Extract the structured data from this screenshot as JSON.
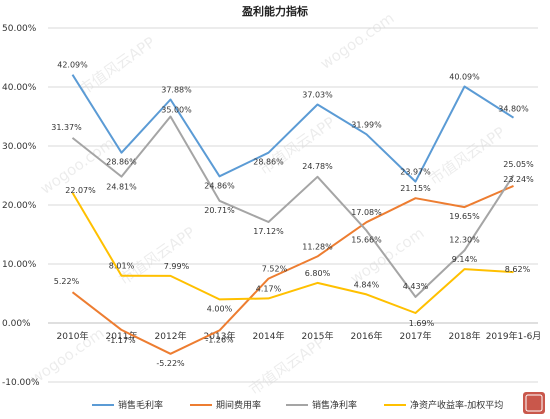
{
  "chart_data": {
    "type": "line",
    "title": "盈利能力指标",
    "categories": [
      "2010年",
      "2011年",
      "2012年",
      "2013年",
      "2014年",
      "2015年",
      "2016年",
      "2017年",
      "2018年",
      "2019年1-6月"
    ],
    "ylim": [
      -10,
      50
    ],
    "yticks": [
      "-10.00%",
      "0.00%",
      "10.00%",
      "20.00%",
      "30.00%",
      "40.00%",
      "50.00%"
    ],
    "ytick_values": [
      -10,
      0,
      10,
      20,
      30,
      40,
      50
    ],
    "grid": true,
    "legend_position": "bottom",
    "series": [
      {
        "name": "销售毛利率",
        "color": "#5b9bd5",
        "values": [
          42.09,
          28.86,
          37.88,
          24.86,
          28.86,
          37.03,
          31.99,
          23.97,
          40.09,
          34.8
        ],
        "labels": [
          "42.09%",
          "28.86%",
          "37.88%",
          "24.86%",
          "28.86%",
          "37.03%",
          "31.99%",
          "23.97%",
          "40.09%",
          "34.80%"
        ]
      },
      {
        "name": "期间费用率",
        "color": "#ed7d31",
        "values": [
          5.22,
          -1.17,
          -5.22,
          -1.26,
          7.52,
          11.28,
          17.08,
          21.15,
          19.65,
          23.24
        ],
        "labels": [
          "5.22%",
          "-1.17%",
          "-5.22%",
          "-1.26%",
          "7.52%",
          "11.28%",
          "17.08%",
          "21.15%",
          "19.65%",
          "23.24%"
        ]
      },
      {
        "name": "销售净利率",
        "color": "#a5a5a5",
        "values": [
          31.37,
          24.81,
          35.0,
          20.71,
          17.12,
          24.78,
          15.66,
          4.43,
          12.3,
          25.05
        ],
        "labels": [
          "31.37%",
          "24.81%",
          "35.00%",
          "20.71%",
          "17.12%",
          "24.78%",
          "15.66%",
          "4.43%",
          "12.30%",
          "25.05%"
        ]
      },
      {
        "name": "净资产收益率-加权平均",
        "color": "#ffc000",
        "values": [
          22.07,
          8.01,
          7.99,
          4.0,
          4.17,
          6.8,
          4.84,
          1.69,
          9.14,
          8.62
        ],
        "labels": [
          "22.07%",
          "8.01%",
          "7.99%",
          "4.00%",
          "4.17%",
          "6.80%",
          "4.84%",
          "1.69%",
          "9.14%",
          "8.62%"
        ]
      }
    ]
  },
  "watermark": {
    "text": "市值风云APP",
    "domain": "wogoo.com"
  }
}
